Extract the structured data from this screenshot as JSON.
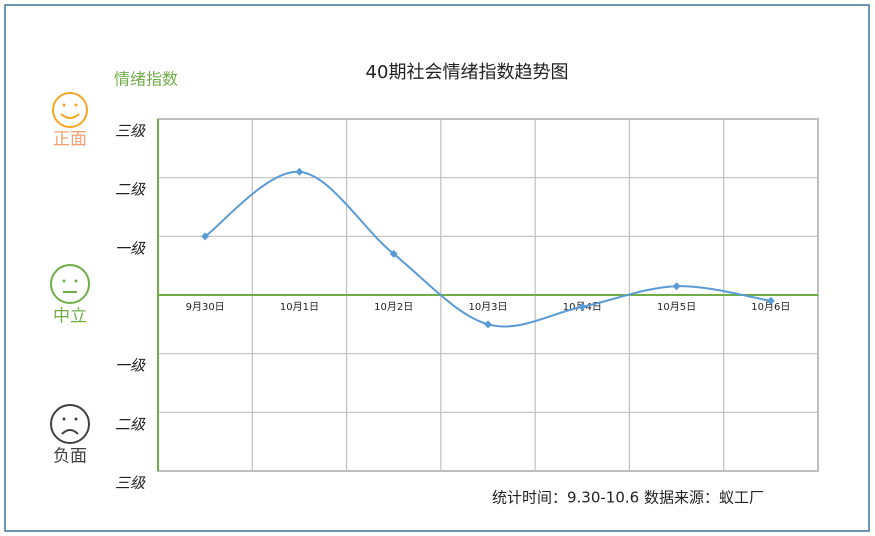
{
  "chart_data": {
    "type": "line",
    "title": "40期社会情绪指数趋势图",
    "ylabel": "情绪指数",
    "categories": [
      "9月30日",
      "10月1日",
      "10月2日",
      "10月3日",
      "10月4日",
      "10月5日",
      "10月6日"
    ],
    "values": [
      1.0,
      2.1,
      0.7,
      -0.5,
      -0.2,
      0.15,
      -0.1
    ],
    "color": "#5b9bd5",
    "ylim": [
      -3,
      3
    ],
    "yticks": [
      {
        "value": 3,
        "label": "三级"
      },
      {
        "value": 2,
        "label": "二级"
      },
      {
        "value": 1,
        "label": "一级"
      },
      {
        "value": -1,
        "label": "一级"
      },
      {
        "value": -2,
        "label": "二级"
      },
      {
        "value": -3,
        "label": "三级"
      }
    ],
    "grid": true,
    "annotations": [
      "正面",
      "中立",
      "负面"
    ],
    "note": "统计时间：9.30-10.6   数据来源：蚁工厂"
  }
}
